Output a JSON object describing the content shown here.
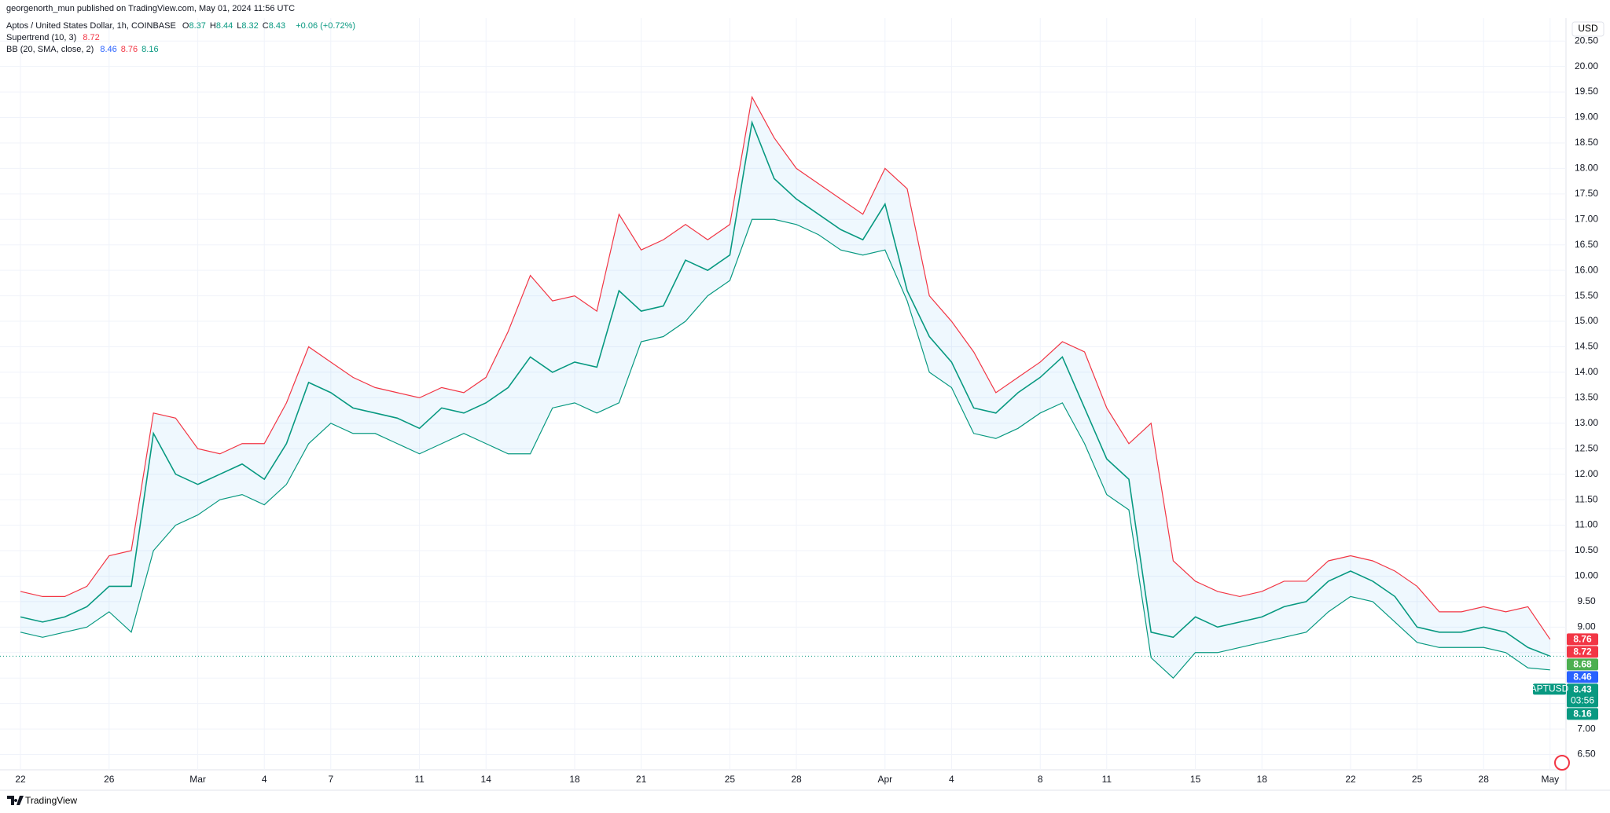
{
  "header": {
    "published": "georgenorth_mun published on TradingView.com, May 01, 2024 11:56 UTC"
  },
  "legend": {
    "symbol": "Aptos / United States Dollar, 1h, COINBASE",
    "ohlc": [
      {
        "key": "O",
        "value": 8.37
      },
      {
        "key": "H",
        "value": 8.44
      },
      {
        "key": "L",
        "value": 8.32
      },
      {
        "key": "C",
        "value": 8.43
      }
    ],
    "change": "+0.06 (+0.72%)",
    "supertrend": {
      "name": "Supertrend (10, 3)",
      "value": 8.72
    },
    "bb": {
      "name": "BB (20, SMA, close, 2)",
      "values": [
        8.46,
        8.76,
        8.16
      ],
      "colors": [
        "#2962ff",
        "#f23645",
        "#089981"
      ]
    }
  },
  "currency": "USD",
  "footer": {
    "brand": "TradingView"
  },
  "chart_data": {
    "type": "line",
    "categories": [
      "22",
      null,
      null,
      null,
      "26",
      null,
      null,
      null,
      "Mar",
      null,
      null,
      "4",
      null,
      null,
      "7",
      null,
      null,
      null,
      "11",
      null,
      null,
      "14",
      null,
      null,
      null,
      "18",
      null,
      null,
      "21",
      null,
      null,
      null,
      "25",
      null,
      null,
      "28",
      null,
      null,
      null,
      "Apr",
      null,
      null,
      "4",
      null,
      null,
      null,
      "8",
      null,
      null,
      "11",
      null,
      null,
      null,
      "15",
      null,
      null,
      "18",
      null,
      null,
      null,
      "22",
      null,
      null,
      "25",
      null,
      null,
      "28",
      null,
      null,
      "May"
    ],
    "series": [
      {
        "color": "#089981",
        "values": [
          9.2,
          9.1,
          9.2,
          9.4,
          9.8,
          9.8,
          12.8,
          12.0,
          11.8,
          12.0,
          12.2,
          11.9,
          12.6,
          13.8,
          13.6,
          13.3,
          13.2,
          13.1,
          12.9,
          13.3,
          13.2,
          13.4,
          13.7,
          14.3,
          14.0,
          14.2,
          14.1,
          15.6,
          15.2,
          15.3,
          16.2,
          16.0,
          16.3,
          18.9,
          17.8,
          17.4,
          17.1,
          16.8,
          16.6,
          17.3,
          15.6,
          14.7,
          14.2,
          13.3,
          13.2,
          13.6,
          13.9,
          14.3,
          13.3,
          12.3,
          11.9,
          8.9,
          8.8,
          9.2,
          9.0,
          9.1,
          9.2,
          9.4,
          9.5,
          9.9,
          10.1,
          9.9,
          9.6,
          9.0,
          8.9,
          8.9,
          9.0,
          8.9,
          8.6,
          8.43
        ]
      },
      {
        "color": "#f23645",
        "values": [
          9.7,
          9.6,
          9.6,
          9.8,
          10.4,
          10.5,
          13.2,
          13.1,
          12.5,
          12.4,
          12.6,
          12.6,
          13.4,
          14.5,
          14.2,
          13.9,
          13.7,
          13.6,
          13.5,
          13.7,
          13.6,
          13.9,
          14.8,
          15.9,
          15.4,
          15.5,
          15.2,
          17.1,
          16.4,
          16.6,
          16.9,
          16.6,
          16.9,
          19.4,
          18.6,
          18.0,
          17.7,
          17.4,
          17.1,
          18.0,
          17.6,
          15.5,
          15.0,
          14.4,
          13.6,
          13.9,
          14.2,
          14.6,
          14.4,
          13.3,
          12.6,
          13.0,
          10.3,
          9.9,
          9.7,
          9.6,
          9.7,
          9.9,
          9.9,
          10.3,
          10.4,
          10.3,
          10.1,
          9.8,
          9.3,
          9.3,
          9.4,
          9.3,
          9.4,
          8.76
        ]
      },
      {
        "color": "#089981",
        "values": [
          8.9,
          8.8,
          8.9,
          9.0,
          9.3,
          8.9,
          10.5,
          11.0,
          11.2,
          11.5,
          11.6,
          11.4,
          11.8,
          12.6,
          13.0,
          12.8,
          12.8,
          12.6,
          12.4,
          12.6,
          12.8,
          12.6,
          12.4,
          12.4,
          13.3,
          13.4,
          13.2,
          13.4,
          14.6,
          14.7,
          15.0,
          15.5,
          15.8,
          17.0,
          17.0,
          16.9,
          16.7,
          16.4,
          16.3,
          16.4,
          15.4,
          14.0,
          13.7,
          12.8,
          12.7,
          12.9,
          13.2,
          13.4,
          12.6,
          11.6,
          11.3,
          8.4,
          8.0,
          8.5,
          8.5,
          8.6,
          8.7,
          8.8,
          8.9,
          9.3,
          9.6,
          9.5,
          9.1,
          8.7,
          8.6,
          8.6,
          8.6,
          8.5,
          8.2,
          8.16
        ]
      }
    ],
    "band_fill": "#2196f3",
    "ylim": [
      6.2,
      20.95
    ],
    "yticks": [
      {
        "value": 6.5,
        "label": "6.50"
      },
      {
        "value": 7,
        "label": "7.00"
      },
      {
        "value": 7.5,
        "label": "7.50"
      },
      {
        "value": 8,
        "label": "8.00"
      },
      {
        "value": 8.5,
        "label": "8.50"
      },
      {
        "value": 9,
        "label": "9.00"
      },
      {
        "value": 9.5,
        "label": "9.50"
      },
      {
        "value": 10,
        "label": "10.00"
      },
      {
        "value": 10.5,
        "label": "10.50"
      },
      {
        "value": 11,
        "label": "11.00"
      },
      {
        "value": 11.5,
        "label": "11.50"
      },
      {
        "value": 12,
        "label": "12.00"
      },
      {
        "value": 12.5,
        "label": "12.50"
      },
      {
        "value": 13,
        "label": "13.00"
      },
      {
        "value": 13.5,
        "label": "13.50"
      },
      {
        "value": 14,
        "label": "14.00"
      },
      {
        "value": 14.5,
        "label": "14.50"
      },
      {
        "value": 15,
        "label": "15.00"
      },
      {
        "value": 15.5,
        "label": "15.50"
      },
      {
        "value": 16,
        "label": "16.00"
      },
      {
        "value": 16.5,
        "label": "16.50"
      },
      {
        "value": 17,
        "label": "17.00"
      },
      {
        "value": 17.5,
        "label": "17.50"
      },
      {
        "value": 18,
        "label": "18.00"
      },
      {
        "value": 18.5,
        "label": "18.50"
      },
      {
        "value": 19,
        "label": "19.00"
      },
      {
        "value": 19.5,
        "label": "19.50"
      },
      {
        "value": 20,
        "label": "20.00"
      },
      {
        "value": 20.5,
        "label": "20.50"
      }
    ],
    "grid": true,
    "price_labels": [
      {
        "value": 8.76,
        "color": "#f23645"
      },
      {
        "value": 8.72,
        "color": "#f23645"
      },
      {
        "value": 8.68,
        "color": "#4caf50"
      },
      {
        "value": 8.46,
        "color": "#2962ff"
      },
      {
        "value": 8.16,
        "color": "#089981"
      }
    ],
    "last_price": {
      "symbol": "APTUSD",
      "value": 8.43,
      "countdown": "03:56",
      "color": "#089981"
    }
  }
}
